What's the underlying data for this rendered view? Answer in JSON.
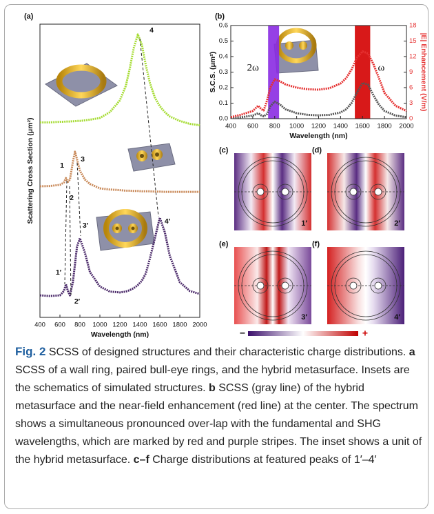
{
  "chart_data": [
    {
      "type": "line",
      "panel_label": "(a)",
      "x_label": "Wavelength (nm)",
      "y_label": "Scattering Cross Section (μm²)",
      "xlim": [
        400,
        2000
      ],
      "xticks": [
        400,
        600,
        800,
        1000,
        1200,
        1400,
        1600,
        1800,
        2000
      ],
      "ylim": [
        0,
        1
      ],
      "x": [
        400,
        500,
        600,
        640,
        660,
        680,
        700,
        730,
        750,
        770,
        800,
        850,
        900,
        1000,
        1100,
        1200,
        1260,
        1300,
        1340,
        1380,
        1420,
        1460,
        1500,
        1550,
        1600,
        1650,
        1700,
        1800,
        1900,
        2000
      ],
      "series": [
        {
          "color": "#a6dc34",
          "values": [
            0.665,
            0.665,
            0.667,
            0.667,
            0.668,
            0.668,
            0.668,
            0.669,
            0.669,
            0.67,
            0.67,
            0.672,
            0.674,
            0.68,
            0.7,
            0.74,
            0.79,
            0.85,
            0.92,
            0.965,
            0.93,
            0.86,
            0.8,
            0.75,
            0.72,
            0.7,
            0.685,
            0.67,
            0.66,
            0.655
          ]
        },
        {
          "color": "#c98a5a",
          "values": [
            0.447,
            0.448,
            0.452,
            0.46,
            0.475,
            0.462,
            0.47,
            0.53,
            0.565,
            0.54,
            0.5,
            0.47,
            0.455,
            0.44,
            0.436,
            0.434,
            0.432,
            0.432,
            0.431,
            0.431,
            0.43,
            0.43,
            0.43,
            0.429,
            0.429,
            0.428,
            0.428,
            0.428,
            0.428,
            0.428
          ]
        },
        {
          "color": "#4b2a6a",
          "values": [
            0.075,
            0.073,
            0.075,
            0.09,
            0.113,
            0.09,
            0.075,
            0.12,
            0.18,
            0.24,
            0.27,
            0.22,
            0.155,
            0.105,
            0.088,
            0.085,
            0.088,
            0.093,
            0.1,
            0.11,
            0.125,
            0.15,
            0.2,
            0.27,
            0.34,
            0.29,
            0.21,
            0.12,
            0.09,
            0.08
          ]
        }
      ],
      "annotations": [
        "4",
        "1",
        "2",
        "3",
        "1′",
        "2′",
        "3′",
        "4′"
      ]
    },
    {
      "type": "line",
      "panel_label": "(b)",
      "x_label": "Wavelength (nm)",
      "y_label": "S.C.S. (μm²)",
      "y2_label": "|E| Enhancement (V/m)",
      "xlim": [
        400,
        2000
      ],
      "xticks": [
        400,
        600,
        800,
        1000,
        1200,
        1400,
        1600,
        1800,
        2000
      ],
      "ylim": [
        0,
        0.6
      ],
      "yticks": [
        {
          "value": 0,
          "label": "0.0"
        },
        0.1,
        0.2,
        0.3,
        0.4,
        0.5,
        0.6
      ],
      "y2lim": [
        0,
        18
      ],
      "y2ticks": [
        0,
        3,
        6,
        9,
        12,
        15,
        18
      ],
      "stripes": [
        {
          "range": [
            740,
            840
          ],
          "color": "#8a2be2",
          "label": "2ω"
        },
        {
          "range": [
            1530,
            1670
          ],
          "color": "#d40000",
          "label": "ω"
        }
      ],
      "x": [
        400,
        500,
        600,
        650,
        680,
        700,
        730,
        760,
        800,
        850,
        900,
        1000,
        1100,
        1200,
        1300,
        1400,
        1450,
        1500,
        1550,
        1600,
        1650,
        1700,
        1750,
        1800,
        1900,
        2000
      ],
      "series": [
        {
          "color": "#555555",
          "values": [
            0.005,
            0.01,
            0.02,
            0.035,
            0.02,
            0.015,
            0.03,
            0.08,
            0.11,
            0.09,
            0.06,
            0.035,
            0.025,
            0.022,
            0.025,
            0.04,
            0.06,
            0.1,
            0.17,
            0.23,
            0.22,
            0.15,
            0.09,
            0.05,
            0.02,
            0.01
          ]
        },
        {
          "color": "#e53030",
          "axis": "y2",
          "values": [
            0.3,
            0.8,
            1.5,
            2.5,
            1.8,
            1.6,
            3.5,
            6.0,
            7.6,
            7.2,
            6.6,
            6.0,
            5.7,
            5.6,
            5.9,
            6.8,
            7.8,
            9.5,
            11.8,
            13.0,
            12.6,
            10.5,
            7.8,
            5.0,
            2.5,
            1.5
          ]
        }
      ]
    }
  ],
  "field_maps": [
    {
      "panel": "(c)",
      "peak": "1′"
    },
    {
      "panel": "(d)",
      "peak": "2′"
    },
    {
      "panel": "(e)",
      "peak": "3′"
    },
    {
      "panel": "(f)",
      "peak": "4′"
    }
  ],
  "colorbar": {
    "min_label": "−",
    "max_label": "+"
  },
  "caption": {
    "segments": [
      {
        "text": "Fig. 2",
        "bold": true
      },
      {
        "text": " SCSS of designed structures and their characteristic charge distributions. "
      },
      {
        "text": "a",
        "bold": true
      },
      {
        "text": " SCSS of a wall ring, paired bull-eye rings, and the hybrid metasurface. Insets are the schematics of simulated structures. "
      },
      {
        "text": "b",
        "bold": true
      },
      {
        "text": " SCSS (gray line) of the hybrid metasurface and the near-field enhancement (red line) at the center. The spectrum shows a simultaneous pronounced over-lap with the fundamental and SHG wavelengths, which are marked by red and purple stripes. The inset shows a unit of the hybrid metasurface. "
      },
      {
        "text": "c–f",
        "bold": true
      },
      {
        "text": " Charge distributions at featured peaks of 1′–4′"
      }
    ]
  }
}
